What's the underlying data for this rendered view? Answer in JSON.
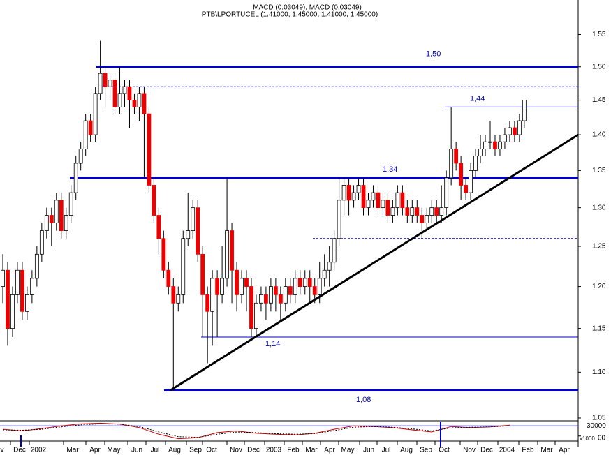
{
  "chart_data": {
    "type": "candlestick",
    "title": "PTB\\LPORTUCEL (1.41000, 1.45000, 1.41000, 1.45000)",
    "subtitle": "MACD (0.03049), MACD (0.03049)",
    "log_scale": true,
    "ylim": [
      1.047,
      1.594
    ],
    "yticks": [
      {
        "value": 1.05,
        "label": "1.05"
      },
      {
        "value": 1.1,
        "label": "1.10"
      },
      {
        "value": 1.15,
        "label": "1.15"
      },
      {
        "value": 1.2,
        "label": "1.20"
      },
      {
        "value": 1.25,
        "label": "1.25"
      },
      {
        "value": 1.3,
        "label": "1.30"
      },
      {
        "value": 1.35,
        "label": "1.35"
      },
      {
        "value": 1.4,
        "label": "1.40"
      },
      {
        "value": 1.45,
        "label": "1.45"
      },
      {
        "value": 1.5,
        "label": "1.50"
      },
      {
        "value": 1.55,
        "label": "1.55"
      }
    ],
    "x_labels": [
      "v",
      "Dec",
      "2002",
      "Mar",
      "Apr",
      "May",
      "Jun",
      "Jul",
      "Aug",
      "Sep",
      "Oct",
      "Nov",
      "Dec",
      "2003",
      "Feb",
      "Mar",
      "Apr",
      "May",
      "Jun",
      "Jul",
      "Aug",
      "Sep",
      "Oct",
      "Nov",
      "Dec",
      "2004",
      "Feb",
      "Mar",
      "Apr"
    ],
    "up_color": "#ffffff",
    "down_color": "#ee0000",
    "open": [
      1.2,
      1.22,
      1.15,
      1.19,
      1.22,
      1.17,
      1.19,
      1.21,
      1.24,
      1.27,
      1.29,
      1.28,
      1.31,
      1.27,
      1.29,
      1.32,
      1.36,
      1.38,
      1.42,
      1.4,
      1.46,
      1.49,
      1.47,
      1.48,
      1.44,
      1.46,
      1.47,
      1.45,
      1.44,
      1.46,
      1.43,
      1.33,
      1.29,
      1.26,
      1.22,
      1.2,
      1.18,
      1.19,
      1.26,
      1.27,
      1.3,
      1.24,
      1.19,
      1.17,
      1.21,
      1.19,
      1.21,
      1.27,
      1.22,
      1.19,
      1.21,
      1.2,
      1.15,
      1.18,
      1.19,
      1.18,
      1.2,
      1.19,
      1.18,
      1.2,
      1.19,
      1.21,
      1.2,
      1.21,
      1.2,
      1.19,
      1.21,
      1.22,
      1.23,
      1.26,
      1.31,
      1.33,
      1.31,
      1.32,
      1.33,
      1.3,
      1.31,
      1.32,
      1.3,
      1.31,
      1.29,
      1.3,
      1.32,
      1.3,
      1.29,
      1.3,
      1.29,
      1.28,
      1.29,
      1.3,
      1.29,
      1.3,
      1.34,
      1.38,
      1.36,
      1.33,
      1.32,
      1.35,
      1.37,
      1.38,
      1.39,
      1.39,
      1.38,
      1.39,
      1.4,
      1.41,
      1.4,
      1.42
    ],
    "high": [
      1.24,
      1.23,
      1.2,
      1.23,
      1.23,
      1.2,
      1.22,
      1.25,
      1.28,
      1.3,
      1.3,
      1.32,
      1.32,
      1.3,
      1.33,
      1.37,
      1.39,
      1.43,
      1.43,
      1.47,
      1.54,
      1.5,
      1.49,
      1.49,
      1.5,
      1.48,
      1.48,
      1.46,
      1.47,
      1.47,
      1.44,
      1.34,
      1.3,
      1.27,
      1.23,
      1.21,
      1.2,
      1.27,
      1.32,
      1.31,
      1.31,
      1.25,
      1.2,
      1.22,
      1.22,
      1.25,
      1.34,
      1.28,
      1.23,
      1.22,
      1.22,
      1.21,
      1.19,
      1.2,
      1.2,
      1.21,
      1.21,
      1.2,
      1.21,
      1.21,
      1.22,
      1.22,
      1.22,
      1.22,
      1.21,
      1.23,
      1.24,
      1.25,
      1.27,
      1.34,
      1.34,
      1.34,
      1.33,
      1.34,
      1.34,
      1.32,
      1.33,
      1.33,
      1.32,
      1.32,
      1.31,
      1.33,
      1.33,
      1.31,
      1.31,
      1.31,
      1.3,
      1.3,
      1.31,
      1.31,
      1.33,
      1.35,
      1.44,
      1.39,
      1.37,
      1.34,
      1.36,
      1.38,
      1.4,
      1.4,
      1.42,
      1.4,
      1.4,
      1.41,
      1.42,
      1.42,
      1.43,
      1.45
    ],
    "low": [
      1.18,
      1.13,
      1.14,
      1.18,
      1.16,
      1.16,
      1.18,
      1.2,
      1.23,
      1.26,
      1.25,
      1.27,
      1.26,
      1.26,
      1.28,
      1.31,
      1.35,
      1.37,
      1.39,
      1.39,
      1.45,
      1.44,
      1.45,
      1.43,
      1.43,
      1.44,
      1.41,
      1.43,
      1.42,
      1.34,
      1.32,
      1.28,
      1.24,
      1.21,
      1.19,
      1.08,
      1.17,
      1.18,
      1.25,
      1.26,
      1.23,
      1.14,
      1.11,
      1.13,
      1.14,
      1.18,
      1.2,
      1.18,
      1.17,
      1.18,
      1.17,
      1.14,
      1.14,
      1.17,
      1.16,
      1.17,
      1.17,
      1.16,
      1.17,
      1.18,
      1.18,
      1.19,
      1.19,
      1.18,
      1.18,
      1.18,
      1.2,
      1.2,
      1.22,
      1.25,
      1.29,
      1.29,
      1.3,
      1.31,
      1.29,
      1.29,
      1.3,
      1.29,
      1.29,
      1.28,
      1.28,
      1.29,
      1.29,
      1.28,
      1.28,
      1.28,
      1.26,
      1.27,
      1.28,
      1.28,
      1.28,
      1.29,
      1.33,
      1.35,
      1.31,
      1.31,
      1.31,
      1.34,
      1.36,
      1.37,
      1.38,
      1.37,
      1.37,
      1.38,
      1.39,
      1.39,
      1.39,
      1.41
    ],
    "close": [
      1.22,
      1.15,
      1.19,
      1.22,
      1.17,
      1.19,
      1.21,
      1.24,
      1.27,
      1.29,
      1.28,
      1.31,
      1.27,
      1.29,
      1.32,
      1.36,
      1.38,
      1.42,
      1.4,
      1.46,
      1.49,
      1.47,
      1.48,
      1.44,
      1.46,
      1.47,
      1.45,
      1.44,
      1.46,
      1.43,
      1.33,
      1.29,
      1.26,
      1.22,
      1.2,
      1.18,
      1.19,
      1.26,
      1.27,
      1.3,
      1.24,
      1.19,
      1.17,
      1.21,
      1.19,
      1.21,
      1.27,
      1.22,
      1.19,
      1.21,
      1.2,
      1.15,
      1.18,
      1.19,
      1.18,
      1.2,
      1.19,
      1.18,
      1.2,
      1.19,
      1.21,
      1.2,
      1.21,
      1.2,
      1.19,
      1.21,
      1.22,
      1.23,
      1.26,
      1.31,
      1.33,
      1.31,
      1.32,
      1.33,
      1.3,
      1.31,
      1.32,
      1.3,
      1.31,
      1.29,
      1.3,
      1.32,
      1.3,
      1.29,
      1.3,
      1.29,
      1.28,
      1.29,
      1.3,
      1.29,
      1.3,
      1.34,
      1.38,
      1.36,
      1.33,
      1.32,
      1.35,
      1.37,
      1.38,
      1.39,
      1.39,
      1.38,
      1.39,
      1.4,
      1.41,
      1.4,
      1.42,
      1.45
    ],
    "levels": [
      {
        "value": 1.5,
        "label": "1,50",
        "style": "thick"
      },
      1.47,
      {
        "value": 1.44,
        "label": "1,44",
        "style": "thin"
      },
      {
        "value": 1.34,
        "label": "1,34",
        "style": "thick"
      },
      1.26,
      {
        "value": 1.14,
        "label": "1,14",
        "style": "thin"
      },
      {
        "value": 1.08,
        "label": "1,08",
        "style": "thick"
      }
    ],
    "level_color": "#0000cc",
    "trendline": [
      1.08,
      1.4
    ],
    "macd": {
      "ylim": [
        -15000,
        45000
      ],
      "yticks": [
        30000,
        {
          "value": 0,
          "label": "00"
        }
      ],
      "unit_label": "x1000",
      "series": [
        {
          "color": "#cc0000",
          "values": [
            20000,
            15000,
            22000,
            30000,
            36000,
            38000,
            35000,
            25000,
            5000,
            -8000,
            -5000,
            10000,
            15000,
            8000,
            5000,
            3000,
            8000,
            20000,
            30000,
            28000,
            25000,
            18000,
            12000,
            28000,
            25000,
            27000,
            32000
          ]
        },
        {
          "color": "#000000",
          "dashed": true,
          "values": [
            18000,
            17000,
            20000,
            27000,
            33000,
            36000,
            35000,
            28000,
            12000,
            -2000,
            -4000,
            5000,
            12000,
            10000,
            7000,
            5000,
            7000,
            16000,
            26000,
            28000,
            26000,
            21000,
            15000,
            24000,
            26000,
            27000,
            30000
          ]
        }
      ]
    }
  }
}
